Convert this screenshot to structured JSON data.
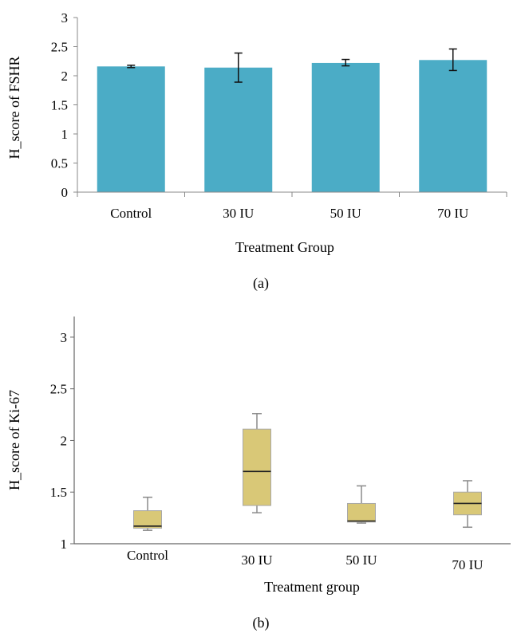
{
  "chart_data": [
    {
      "type": "bar",
      "panel_label": "(a)",
      "xlabel": "Treatment Group",
      "ylabel": "H_score of FSHR",
      "ylim": [
        0,
        3
      ],
      "yticks": [
        "0",
        "0.5",
        "1",
        "1.5",
        "2",
        "2.5",
        "3"
      ],
      "categories": [
        "Control",
        "30 IU",
        "50 IU",
        "70 IU"
      ],
      "values": [
        2.16,
        2.14,
        2.22,
        2.27
      ],
      "error_low": [
        2.14,
        1.89,
        2.17,
        2.09
      ],
      "error_high": [
        2.18,
        2.39,
        2.28,
        2.46
      ],
      "color": "#4bacc6"
    },
    {
      "type": "box",
      "panel_label": "(b)",
      "xlabel": "Treatment group",
      "ylabel": "H_score of Ki-67",
      "ylim": [
        1,
        3.2
      ],
      "yticks": [
        "1",
        "1.5",
        "2",
        "2.5",
        "3"
      ],
      "categories": [
        "Control",
        "30 IU",
        "50 IU",
        "70 IU"
      ],
      "boxes": [
        {
          "min": 1.13,
          "q1": 1.15,
          "median": 1.17,
          "q3": 1.32,
          "max": 1.45
        },
        {
          "min": 1.3,
          "q1": 1.37,
          "median": 1.7,
          "q3": 2.11,
          "max": 2.26
        },
        {
          "min": 1.2,
          "q1": 1.21,
          "median": 1.22,
          "q3": 1.39,
          "max": 1.56
        },
        {
          "min": 1.16,
          "q1": 1.28,
          "median": 1.39,
          "q3": 1.5,
          "max": 1.61
        }
      ],
      "color": "#d9c877"
    }
  ]
}
